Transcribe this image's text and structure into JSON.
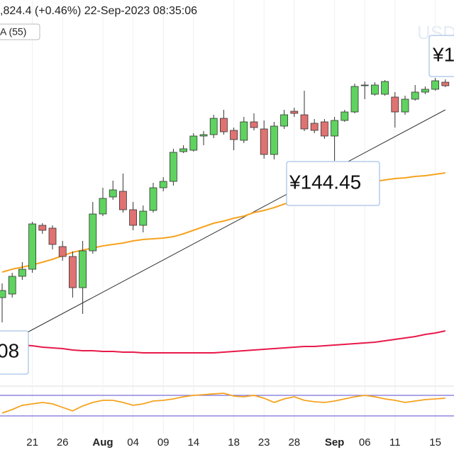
{
  "chart_data": {
    "type": "candlestick",
    "title": ",824.4 (+0.46%) 22-Sep-2023 08:35:06",
    "indicator": "A (55)",
    "watermark": "USD",
    "annotations": [
      "¥144.45",
      "08",
      "¥1"
    ],
    "categories": [
      null,
      null,
      null,
      "21",
      null,
      null,
      "26",
      null,
      null,
      null,
      "Aug",
      null,
      null,
      "04",
      null,
      null,
      "09",
      null,
      null,
      "14",
      null,
      null,
      null,
      "18",
      null,
      null,
      "23",
      null,
      null,
      "28",
      null,
      null,
      null,
      "Sep",
      null,
      null,
      "06",
      null,
      null,
      "11",
      null,
      null,
      null,
      "15",
      null
    ],
    "open": [
      138.66,
      138.81,
      139.56,
      139.86,
      141.72,
      141.6,
      140.82,
      140.4,
      139.08,
      140.64,
      142.2,
      142.92,
      143.16,
      142.38,
      141.72,
      142.35,
      143.31,
      143.58,
      144.84,
      144.9,
      145.5,
      145.56,
      146.25,
      145.74,
      145.32,
      146.1,
      145.8,
      144.72,
      145.92,
      146.55,
      146.4,
      146.04,
      146.1,
      145.5,
      146.16,
      146.52,
      147.63,
      147.27,
      147.27,
      147.15,
      146.52,
      147.06,
      147.36,
      147.48,
      147.78
    ],
    "high": [
      139.26,
      139.71,
      140.16,
      141.87,
      141.81,
      141.72,
      141.06,
      140.61,
      141.06,
      142.71,
      143.31,
      143.61,
      143.91,
      142.71,
      142.56,
      143.52,
      143.76,
      144.96,
      145.11,
      145.62,
      145.71,
      146.4,
      146.61,
      145.86,
      146.31,
      146.46,
      146.16,
      146.1,
      146.61,
      146.7,
      147.42,
      146.22,
      146.22,
      146.31,
      146.61,
      147.72,
      147.81,
      147.78,
      147.87,
      147.36,
      147.21,
      147.66,
      147.6,
      147.96,
      147.9
    ],
    "low": [
      137.61,
      138.66,
      139.41,
      139.71,
      141.36,
      140.7,
      140.22,
      138.66,
      137.97,
      140.52,
      142.11,
      142.8,
      142.26,
      141.51,
      141.42,
      142.26,
      143.16,
      143.4,
      144.78,
      144.84,
      145.11,
      145.41,
      145.56,
      144.9,
      145.2,
      145.74,
      144.54,
      144.51,
      145.8,
      146.31,
      145.71,
      145.62,
      145.38,
      144.45,
      146.1,
      146.46,
      147.06,
      147.21,
      147.21,
      145.86,
      146.4,
      147.0,
      147.27,
      147.42,
      147.57
    ],
    "close": [
      138.96,
      139.56,
      139.86,
      141.78,
      141.51,
      140.91,
      140.4,
      139.08,
      140.64,
      142.2,
      142.86,
      143.22,
      142.38,
      141.72,
      142.32,
      143.31,
      143.58,
      144.81,
      144.96,
      145.5,
      145.56,
      146.25,
      145.68,
      145.35,
      146.1,
      145.86,
      144.72,
      145.92,
      146.4,
      146.46,
      145.8,
      145.74,
      145.5,
      146.16,
      146.52,
      147.6,
      147.66,
      147.66,
      147.81,
      146.52,
      147.06,
      147.36,
      147.48,
      147.84,
      147.63
    ],
    "up_color": "#5fd35f",
    "down_color": "#e07272",
    "moving_averages": [
      {
        "color": "#f5a31f",
        "values": [
          139.74,
          139.86,
          139.95,
          140.04,
          140.16,
          140.28,
          140.43,
          140.58,
          140.67,
          140.76,
          140.85,
          140.91,
          140.97,
          141.06,
          141.12,
          141.15,
          141.18,
          141.24,
          141.36,
          141.51,
          141.66,
          141.81,
          141.9,
          142.02,
          142.11,
          142.26,
          142.35,
          142.47,
          142.62,
          142.71,
          142.86,
          143.01,
          143.16,
          143.28,
          143.37,
          143.43,
          143.49,
          143.58,
          143.64,
          143.7,
          143.73,
          143.79,
          143.82,
          143.88,
          143.94
        ]
      },
      {
        "color": "#e8194a",
        "values": [
          136.71,
          136.68,
          136.65,
          136.62,
          136.56,
          136.53,
          136.5,
          136.44,
          136.41,
          136.41,
          136.38,
          136.38,
          136.35,
          136.35,
          136.32,
          136.32,
          136.32,
          136.32,
          136.32,
          136.32,
          136.32,
          136.32,
          136.35,
          136.38,
          136.41,
          136.44,
          136.47,
          136.5,
          136.53,
          136.56,
          136.59,
          136.59,
          136.62,
          136.65,
          136.68,
          136.71,
          136.74,
          136.77,
          136.83,
          136.89,
          136.95,
          137.01,
          137.1,
          137.16,
          137.25
        ]
      }
    ],
    "trendline": [
      136.62,
      146.61
    ],
    "ylim": [
      134.91,
      151.26
    ],
    "oscillator": {
      "color": "#f5a31f",
      "band_color": "#7b6fd6",
      "levels": [
        70,
        30
      ],
      "ylim": [
        -4.5,
        87.9
      ],
      "values": [
        35.5,
        42.4,
        50.7,
        53.4,
        56.2,
        53.4,
        46.6,
        39.7,
        49.3,
        56.2,
        60.3,
        60.3,
        56.2,
        50.7,
        53.4,
        59.0,
        60.3,
        63.1,
        67.2,
        70.0,
        71.4,
        72.8,
        74.1,
        68.6,
        67.2,
        70.0,
        64.5,
        56.2,
        63.1,
        67.2,
        60.3,
        57.6,
        56.2,
        59.0,
        63.1,
        67.2,
        70.0,
        67.2,
        63.1,
        60.3,
        56.2,
        59.0,
        61.7,
        63.1,
        64.5
      ]
    },
    "grid": true
  }
}
